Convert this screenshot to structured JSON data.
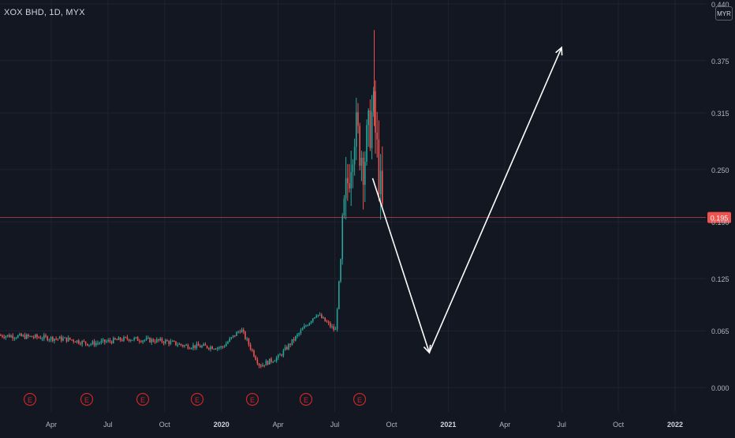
{
  "title": "XOX BHD, 1D, MYX",
  "currency": "MYR",
  "colors": {
    "background": "#131722",
    "grid": "#1f2330",
    "up": "#26a69a",
    "down": "#ef5350",
    "price_line": "#ef5350",
    "axis_text": "#b2b5be",
    "arrow": "#ffffff",
    "earnings": "#c62828"
  },
  "chart_data": {
    "type": "candlestick",
    "title": "XOX BHD, 1D, MYX",
    "y_ticks": [
      "0.000",
      "0.065",
      "0.125",
      "0.190",
      "0.250",
      "0.315",
      "0.375",
      "0.440"
    ],
    "x_ticks": [
      "Apr",
      "Jul",
      "Oct",
      "2020",
      "Apr",
      "Jul",
      "Oct",
      "2021",
      "Apr",
      "Jul",
      "Oct",
      "2022"
    ],
    "ylim": [
      0,
      0.44
    ],
    "x_range": [
      "2019-01",
      "2022-03"
    ],
    "last_price": 0.195,
    "earnings_markers": [
      "E",
      "E",
      "E",
      "E",
      "E",
      "E",
      "E"
    ],
    "price_path": [
      {
        "t": "2019-01",
        "p": 0.06
      },
      {
        "t": "2019-03",
        "p": 0.058
      },
      {
        "t": "2019-05",
        "p": 0.055
      },
      {
        "t": "2019-06",
        "p": 0.05
      },
      {
        "t": "2019-08",
        "p": 0.056
      },
      {
        "t": "2019-10",
        "p": 0.053
      },
      {
        "t": "2019-11",
        "p": 0.048
      },
      {
        "t": "2020-01",
        "p": 0.046
      },
      {
        "t": "2020-02",
        "p": 0.067
      },
      {
        "t": "2020-03",
        "p": 0.025
      },
      {
        "t": "2020-04",
        "p": 0.035
      },
      {
        "t": "2020-05",
        "p": 0.06
      },
      {
        "t": "2020-06",
        "p": 0.085
      },
      {
        "t": "2020-07",
        "p": 0.065
      },
      {
        "t": "2020-07b",
        "p": 0.21
      },
      {
        "t": "2020-08",
        "p": 0.3
      },
      {
        "t": "2020-08b",
        "p": 0.26
      },
      {
        "t": "2020-09",
        "p": 0.32
      },
      {
        "t": "2020-09b",
        "p": 0.195
      }
    ],
    "spike_high": 0.41,
    "annotation_arrows": [
      {
        "from": {
          "t": "2020-09",
          "p": 0.24
        },
        "to": {
          "t": "2020-12",
          "p": 0.04
        }
      },
      {
        "from": {
          "t": "2020-12",
          "p": 0.04
        },
        "to": {
          "t": "2021-07",
          "p": 0.39
        }
      }
    ]
  }
}
